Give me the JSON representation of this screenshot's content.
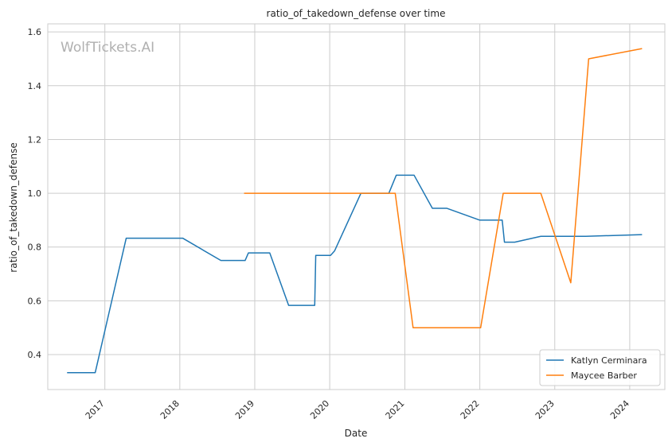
{
  "chart_data": {
    "type": "line",
    "title": "ratio_of_takedown_defense over time",
    "xlabel": "Date",
    "ylabel": "ratio_of_takedown_defense",
    "watermark": "WolfTickets.AI",
    "xlim": [
      "2016-03-29",
      "2024-06-20"
    ],
    "ylim": [
      0.27,
      1.63
    ],
    "x_ticks": [
      "2017-01-01",
      "2018-01-01",
      "2019-01-01",
      "2020-01-01",
      "2021-01-01",
      "2022-01-01",
      "2023-01-01",
      "2024-01-01"
    ],
    "x_tick_labels": [
      "2017",
      "2018",
      "2019",
      "2020",
      "2021",
      "2022",
      "2023",
      "2024"
    ],
    "y_ticks": [
      0.4,
      0.6,
      0.8,
      1.0,
      1.2,
      1.4,
      1.6
    ],
    "y_tick_labels": [
      "0.4",
      "0.6",
      "0.8",
      "1.0",
      "1.2",
      "1.4",
      "1.6"
    ],
    "grid": true,
    "legend_position": "lower-right",
    "series": [
      {
        "name": "Katlyn Cerminara",
        "color": "#1f77b4",
        "points": [
          [
            "2016-07-01",
            0.333
          ],
          [
            "2016-11-15",
            0.333
          ],
          [
            "2017-04-15",
            0.833
          ],
          [
            "2018-01-15",
            0.833
          ],
          [
            "2018-07-20",
            0.75
          ],
          [
            "2018-11-15",
            0.75
          ],
          [
            "2018-12-01",
            0.778
          ],
          [
            "2019-03-15",
            0.778
          ],
          [
            "2019-06-15",
            0.583
          ],
          [
            "2019-10-20",
            0.583
          ],
          [
            "2019-10-25",
            0.769
          ],
          [
            "2020-01-05",
            0.769
          ],
          [
            "2020-01-25",
            0.786
          ],
          [
            "2020-06-01",
            1.0
          ],
          [
            "2020-10-15",
            1.0
          ],
          [
            "2020-11-20",
            1.067
          ],
          [
            "2021-02-15",
            1.067
          ],
          [
            "2021-05-15",
            0.944
          ],
          [
            "2021-07-25",
            0.944
          ],
          [
            "2022-01-01",
            0.9
          ],
          [
            "2022-04-20",
            0.9
          ],
          [
            "2022-05-01",
            0.818
          ],
          [
            "2022-06-20",
            0.818
          ],
          [
            "2022-10-25",
            0.84
          ],
          [
            "2023-06-01",
            0.84
          ],
          [
            "2024-03-01",
            0.846
          ]
        ]
      },
      {
        "name": "Maycee Barber",
        "color": "#ff7f0e",
        "points": [
          [
            "2018-11-10",
            1.0
          ],
          [
            "2020-11-15",
            1.0
          ],
          [
            "2021-02-10",
            0.5
          ],
          [
            "2022-01-05",
            0.5
          ],
          [
            "2022-04-25",
            1.0
          ],
          [
            "2022-10-25",
            1.0
          ],
          [
            "2023-03-20",
            0.667
          ],
          [
            "2023-06-15",
            1.5
          ],
          [
            "2024-03-01",
            1.538
          ]
        ]
      }
    ]
  }
}
